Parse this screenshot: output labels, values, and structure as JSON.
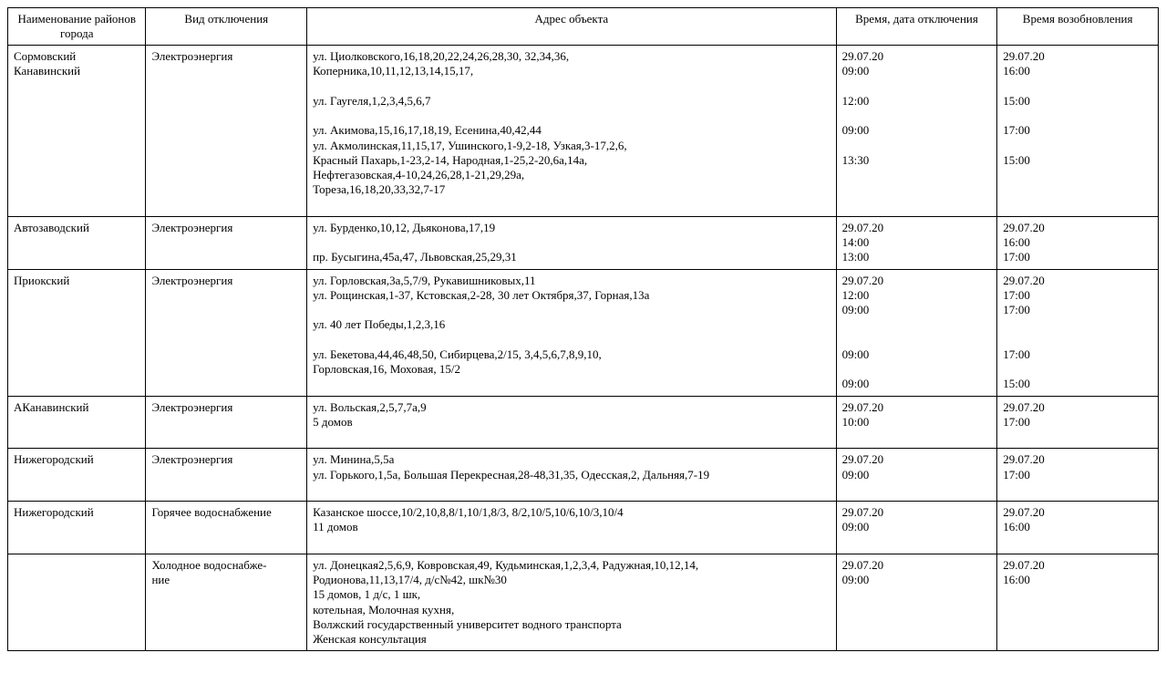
{
  "headers": {
    "district": "Наименование районов города",
    "type": "Вид отключения",
    "address": "Адрес объекта",
    "off": "Время, дата отключения",
    "on": "Время возобновления"
  },
  "rows": [
    {
      "district": [
        "Сормовский",
        "Канавинский"
      ],
      "type": [
        "Электроэнергия"
      ],
      "address": [
        "ул. Циолковского,16,18,20,22,24,26,28,30, 32,34,36,",
        "Коперника,10,11,12,13,14,15,17,",
        "",
        "ул. Гаугеля,1,2,3,4,5,6,7",
        "",
        "ул. Акимова,15,16,17,18,19, Есенина,40,42,44",
        "ул. Акмолинская,11,15,17, Ушинского,1-9,2-18, Узкая,3-17,2,6,",
        "Красный Пахарь,1-23,2-14, Народная,1-25,2-20,6а,14а,",
        "Нефтегазовская,4-10,24,26,28,1-21,29,29а,",
        "Тореза,16,18,20,33,32,7-17",
        ""
      ],
      "off": [
        "29.07.20",
        "09:00",
        "",
        "12:00",
        "",
        "09:00",
        "",
        "13:30"
      ],
      "on": [
        "29.07.20",
        "16:00",
        "",
        "15:00",
        "",
        "17:00",
        "",
        "15:00"
      ]
    },
    {
      "district": [
        "Автозаводский"
      ],
      "type": [
        "Электроэнергия"
      ],
      "address": [
        "ул. Бурденко,10,12, Дьяконова,17,19",
        "",
        "пр. Бусыгина,45а,47, Львовская,25,29,31"
      ],
      "off": [
        "29.07.20",
        "14:00",
        "13:00"
      ],
      "on": [
        "29.07.20",
        "16:00",
        "17:00"
      ]
    },
    {
      "district": [
        "Приокский"
      ],
      "type": [
        "Электроэнергия"
      ],
      "address": [
        "ул. Горловская,3а,5,7/9, Рукавишниковых,11",
        "ул. Рощинская,1-37, Кстовская,2-28, 30 лет Октября,37, Горная,13а",
        "",
        "ул. 40 лет Победы,1,2,3,16",
        "",
        "ул. Бекетова,44,46,48,50, Сибирцева,2/15, 3,4,5,6,7,8,9,10,",
        "Горловская,16, Моховая, 15/2",
        ""
      ],
      "off": [
        "29.07.20",
        "12:00",
        "09:00",
        "",
        "",
        "09:00",
        "",
        "09:00"
      ],
      "on": [
        "29.07.20",
        "17:00",
        "17:00",
        "",
        "",
        "17:00",
        "",
        "15:00"
      ]
    },
    {
      "district": [
        "АКанавинский"
      ],
      "type": [
        "Электроэнергия"
      ],
      "address": [
        "ул. Вольская,2,5,7,7а,9",
        "5 домов",
        ""
      ],
      "off": [
        "29.07.20",
        "10:00"
      ],
      "on": [
        "29.07.20",
        "17:00"
      ]
    },
    {
      "district": [
        "Нижегородский"
      ],
      "type": [
        "Электроэнергия"
      ],
      "address": [
        "ул. Минина,5,5а",
        "ул. Горького,1,5а, Большая Перекресная,28-48,31,35, Одесская,2, Дальняя,7-19",
        ""
      ],
      "off": [
        "29.07.20",
        "09:00"
      ],
      "on": [
        "29.07.20",
        "17:00"
      ]
    },
    {
      "district": [
        "Нижегородский"
      ],
      "type": [
        "Горячее водоснабжение"
      ],
      "address": [
        "Казанское шоссе,10/2,10,8,8/1,10/1,8/3, 8/2,10/5,10/6,10/3,10/4",
        "11 домов",
        ""
      ],
      "off": [
        "29.07.20",
        "09:00"
      ],
      "on": [
        "29.07.20",
        "16:00"
      ]
    },
    {
      "district": [
        ""
      ],
      "type": [
        "Холодное водоснабже-",
        "ние"
      ],
      "address": [
        "ул. Донецкая2,5,6,9, Ковровская,49, Кудьминская,1,2,3,4, Радужная,10,12,14,",
        "Родионова,11,13,17/4, д/с№42, шк№30",
        "15 домов, 1 д/с, 1 шк,",
        "котельная, Молочная кухня,",
        "Волжский государственный университет водного транспорта",
        "Женская консультация"
      ],
      "off": [
        "29.07.20",
        "09:00"
      ],
      "on": [
        "29.07.20",
        "16:00"
      ]
    }
  ]
}
